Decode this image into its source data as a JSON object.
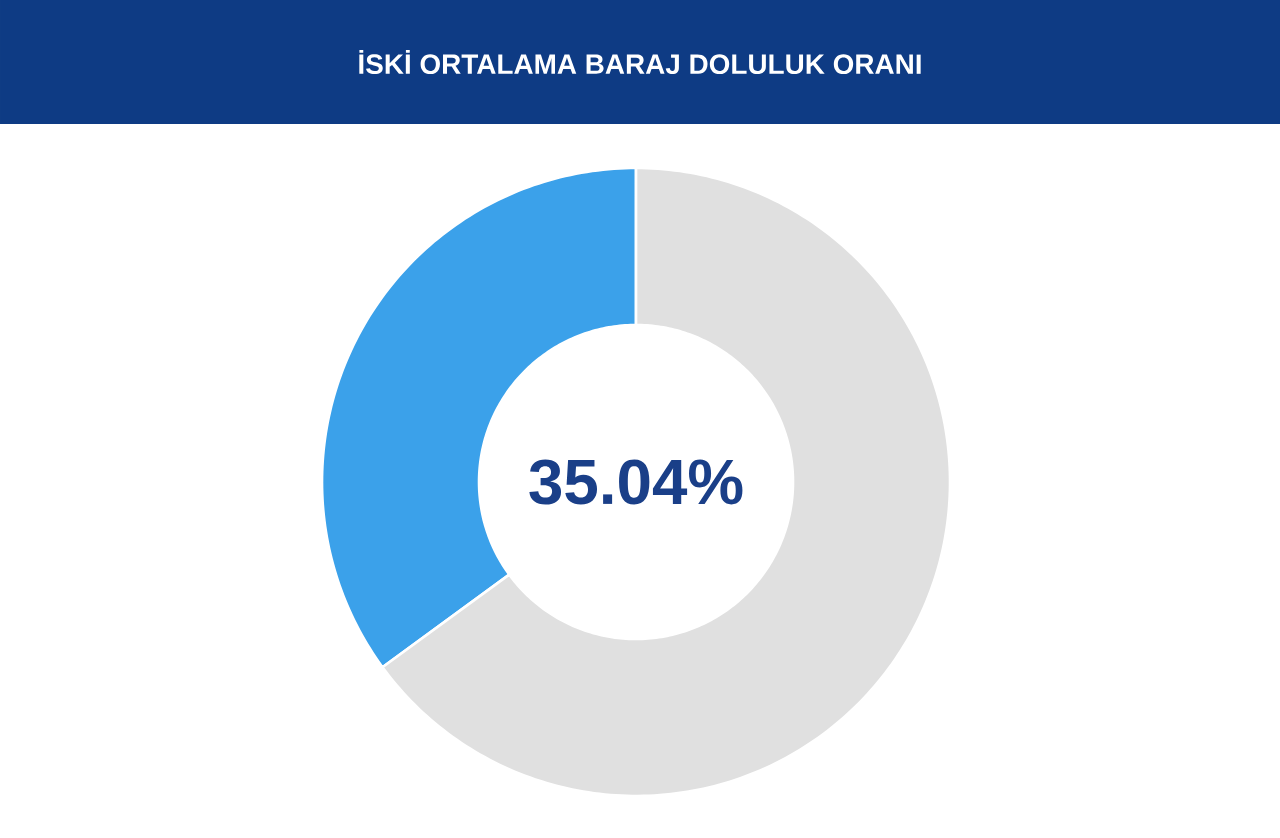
{
  "chart_data": {
    "type": "donut",
    "title": "İSKİ ORTALAMA BARAJ DOLULUK ORANI",
    "categories": [
      null,
      null
    ],
    "values": [
      35.04,
      64.96
    ],
    "colors": [
      "#3ba1ea",
      "#e0e0e0"
    ],
    "value_labels": [
      "35.04%",
      null
    ]
  }
}
